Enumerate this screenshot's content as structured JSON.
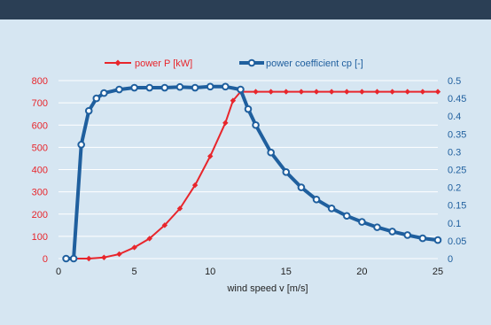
{
  "colors": {
    "background": "#d6e6f2",
    "topbar": "#2b3f55",
    "power": "#e8262c",
    "cp": "#1f5f9e",
    "grid": "#ffffff",
    "axis_text_x": "#222222"
  },
  "chart_data": {
    "type": "line",
    "title": "",
    "xlabel": "wind speed v [m/s]",
    "xlim": [
      0,
      25
    ],
    "x_ticks": [
      "0",
      "5",
      "10",
      "15",
      "20",
      "25"
    ],
    "y_left": {
      "lim": [
        0,
        800
      ],
      "ticks": [
        "0",
        "100",
        "200",
        "300",
        "400",
        "500",
        "600",
        "700",
        "800"
      ]
    },
    "y_right": {
      "lim": [
        0,
        0.5
      ],
      "ticks": [
        "0",
        "0.05",
        "0.1",
        "0.15",
        "0.2",
        "0.25",
        "0.3",
        "0.35",
        "0.4",
        "0.45",
        "0.5"
      ]
    },
    "grid": "horizontal",
    "legend_position": "top",
    "series": [
      {
        "name": "power P [kW]",
        "axis": "left",
        "marker": "diamond",
        "x": [
          1,
          2,
          3,
          4,
          5,
          6,
          7,
          8,
          9,
          10,
          11,
          11.5,
          12,
          13,
          14,
          15,
          16,
          17,
          18,
          19,
          20,
          21,
          22,
          23,
          24,
          25
        ],
        "y": [
          0,
          0,
          5,
          20,
          50,
          90,
          150,
          225,
          330,
          460,
          610,
          710,
          750,
          750,
          750,
          750,
          750,
          750,
          750,
          750,
          750,
          750,
          750,
          750,
          750,
          750
        ]
      },
      {
        "name": "power coefficient cp [-]",
        "axis": "right",
        "marker": "circle",
        "x": [
          0.5,
          1,
          1.5,
          2,
          2.5,
          3,
          4,
          5,
          6,
          7,
          8,
          9,
          10,
          11,
          12,
          12.5,
          13,
          14,
          15,
          16,
          17,
          18,
          19,
          20,
          21,
          22,
          23,
          24,
          25
        ],
        "y": [
          0,
          0,
          0.32,
          0.415,
          0.45,
          0.465,
          0.475,
          0.48,
          0.48,
          0.48,
          0.482,
          0.48,
          0.483,
          0.483,
          0.475,
          0.42,
          0.375,
          0.298,
          0.243,
          0.2,
          0.166,
          0.141,
          0.12,
          0.103,
          0.088,
          0.076,
          0.066,
          0.057,
          0.052
        ]
      }
    ]
  }
}
